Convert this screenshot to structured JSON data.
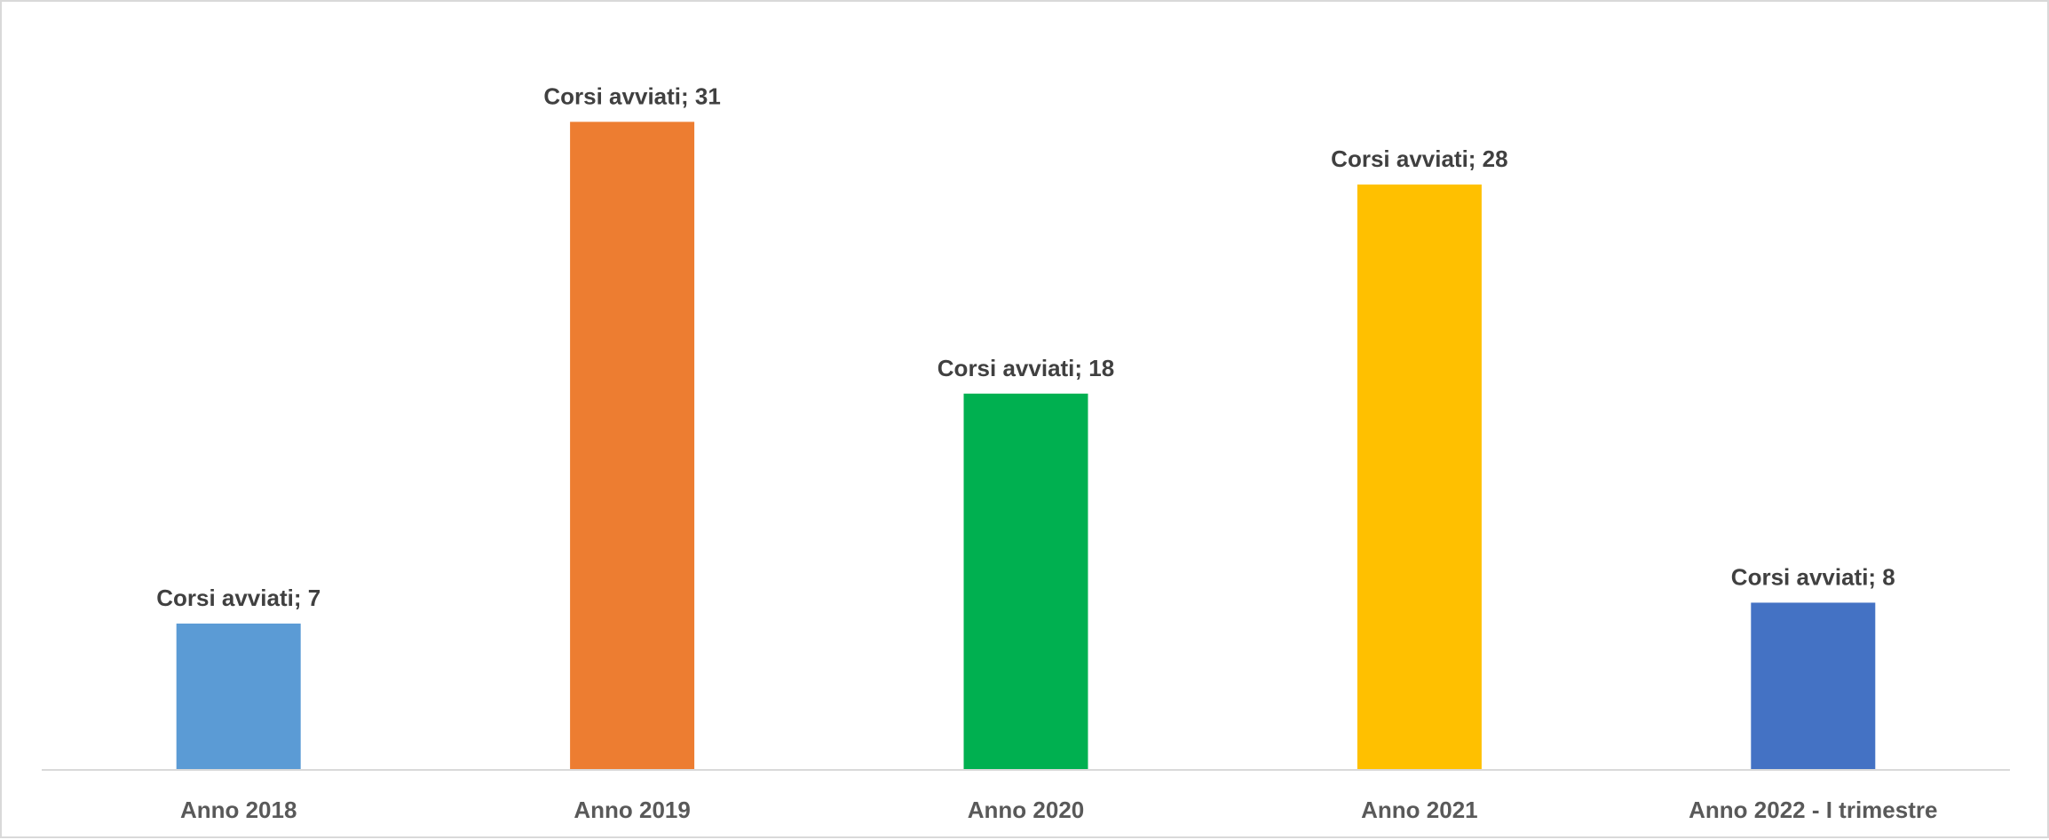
{
  "chart_data": {
    "type": "bar",
    "categories": [
      "Anno 2018",
      "Anno 2019",
      "Anno 2020",
      "Anno 2021",
      "Anno 2022 - I trimestre"
    ],
    "series": [
      {
        "name": "Corsi avviati",
        "values": [
          7,
          31,
          18,
          28,
          8
        ]
      }
    ],
    "data_labels": [
      "Corsi avviati; 7",
      "Corsi avviati; 31",
      "Corsi avviati; 18",
      "Corsi avviati; 28",
      "Corsi avviati; 8"
    ],
    "bar_colors": [
      "#5b9bd5",
      "#ed7d31",
      "#00b050",
      "#ffc000",
      "#4472c4"
    ],
    "title": "",
    "xlabel": "",
    "ylabel": "",
    "ylim": [
      0,
      32.5
    ],
    "grid": false,
    "legend": "none"
  }
}
